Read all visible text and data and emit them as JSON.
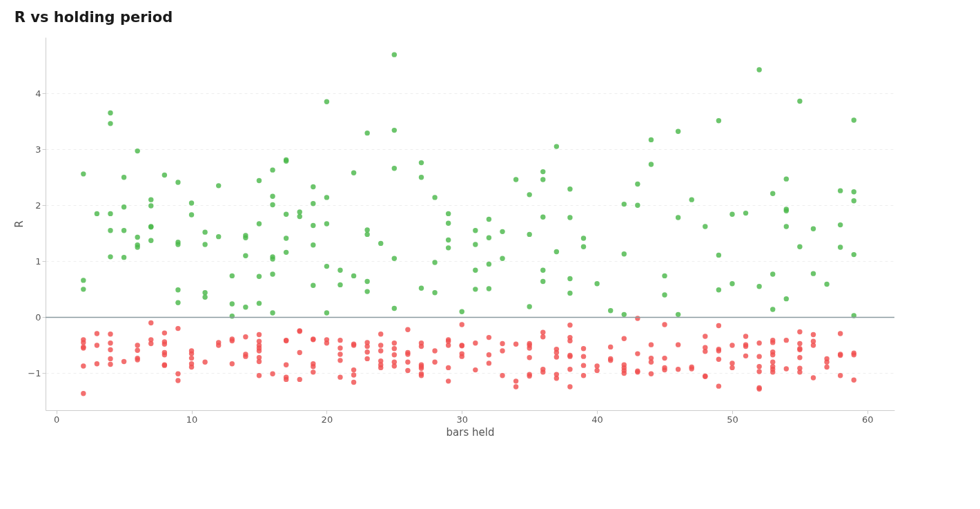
{
  "chart_data": {
    "type": "scatter",
    "title": "R vs holding period",
    "xlabel": "bars held",
    "ylabel": "R",
    "xlim": [
      -0.8,
      62
    ],
    "xticks": [
      0,
      10,
      20,
      30,
      40,
      50,
      60
    ],
    "ylim": [
      -1.66,
      5.0
    ],
    "yticks": [
      -1,
      0,
      1,
      2,
      3,
      4
    ],
    "grid": "y",
    "marker": "circle",
    "ref_lines": [
      {
        "axis": "y",
        "value": 0,
        "color": "#8a9aa0"
      }
    ],
    "series": [
      {
        "color": "#4cb84c",
        "x": [
          2,
          2,
          2,
          3,
          4,
          4,
          4,
          4,
          4,
          5,
          5,
          5,
          5,
          6,
          6,
          6,
          6,
          7,
          7,
          7,
          7,
          7,
          8,
          9,
          9,
          9,
          9,
          9,
          10,
          10,
          11,
          11,
          11,
          11,
          12,
          12,
          13,
          13,
          13,
          14,
          14,
          14,
          14,
          15,
          15,
          15,
          15,
          16,
          16,
          16,
          16,
          16,
          16,
          16,
          17,
          17,
          17,
          17,
          17,
          18,
          18,
          19,
          19,
          19,
          19,
          19,
          20,
          20,
          20,
          20,
          20,
          21,
          21,
          22,
          22,
          23,
          23,
          23,
          23,
          23,
          24,
          25,
          25,
          25,
          25,
          25,
          27,
          27,
          27,
          28,
          28,
          28,
          29,
          29,
          29,
          29,
          30,
          31,
          31,
          31,
          31,
          32,
          32,
          32,
          32,
          33,
          33,
          34,
          35,
          35,
          35,
          36,
          36,
          36,
          36,
          36,
          37,
          37,
          38,
          38,
          38,
          38,
          39,
          39,
          40,
          41,
          42,
          42,
          42,
          43,
          43,
          44,
          44,
          45,
          45,
          46,
          46,
          46,
          47,
          48,
          49,
          49,
          49,
          50,
          50,
          51,
          52,
          52,
          53,
          53,
          53,
          54,
          54,
          54,
          54,
          54,
          55,
          55,
          56,
          56,
          57,
          58,
          58,
          58,
          59,
          59,
          59,
          59,
          59
        ],
        "values": [
          2.56,
          0.66,
          0.5,
          1.85,
          3.65,
          3.46,
          1.85,
          1.55,
          1.08,
          2.5,
          1.97,
          1.55,
          1.07,
          2.97,
          1.43,
          1.29,
          1.25,
          2.1,
          1.99,
          1.62,
          1.61,
          1.37,
          2.54,
          2.41,
          1.34,
          1.3,
          0.49,
          0.26,
          2.04,
          1.83,
          1.52,
          1.3,
          0.44,
          0.36,
          2.35,
          1.44,
          0.74,
          0.24,
          0.02,
          1.46,
          1.42,
          1.1,
          0.18,
          2.44,
          1.67,
          0.73,
          0.25,
          2.63,
          2.16,
          2.01,
          1.08,
          1.04,
          0.77,
          0.08,
          2.81,
          2.79,
          1.84,
          1.41,
          1.16,
          1.88,
          1.8,
          2.33,
          2.03,
          1.64,
          1.29,
          0.57,
          3.85,
          2.14,
          1.67,
          0.91,
          0.08,
          0.84,
          0.58,
          2.58,
          0.74,
          3.29,
          1.56,
          1.48,
          0.64,
          0.46,
          1.32,
          4.69,
          3.34,
          2.66,
          1.05,
          0.16,
          2.76,
          2.5,
          0.52,
          2.14,
          0.98,
          0.44,
          1.85,
          1.68,
          1.38,
          1.24,
          0.1,
          1.55,
          1.3,
          0.84,
          0.5,
          1.75,
          1.42,
          0.95,
          0.51,
          1.53,
          1.05,
          2.46,
          2.19,
          1.48,
          0.19,
          2.6,
          2.46,
          1.79,
          0.84,
          0.64,
          3.05,
          1.17,
          2.29,
          1.78,
          0.69,
          0.43,
          1.41,
          1.26,
          0.6,
          0.12,
          2.02,
          1.13,
          0.05,
          2.38,
          2.0,
          3.17,
          2.73,
          0.74,
          0.4,
          3.32,
          1.78,
          0.05,
          2.1,
          1.62,
          3.51,
          1.11,
          0.49,
          1.84,
          0.6,
          1.86,
          4.42,
          0.55,
          2.21,
          0.77,
          0.14,
          2.47,
          1.93,
          1.9,
          1.62,
          0.33,
          3.86,
          1.26,
          1.58,
          0.78,
          0.59,
          2.26,
          1.65,
          1.25,
          3.52,
          2.24,
          2.08,
          1.12,
          0.03
        ]
      },
      {
        "color": "#f05050",
        "x": [
          2,
          2,
          2,
          2,
          2,
          2,
          3,
          3,
          3,
          4,
          4,
          4,
          4,
          4,
          5,
          6,
          6,
          6,
          6,
          7,
          7,
          7,
          8,
          8,
          8,
          8,
          8,
          8,
          8,
          9,
          9,
          9,
          10,
          10,
          10,
          10,
          10,
          11,
          12,
          12,
          13,
          13,
          13,
          14,
          14,
          14,
          15,
          15,
          15,
          15,
          15,
          15,
          15,
          15,
          16,
          17,
          17,
          17,
          17,
          17,
          18,
          18,
          18,
          18,
          19,
          19,
          19,
          19,
          19,
          20,
          20,
          21,
          21,
          21,
          21,
          21,
          22,
          22,
          22,
          22,
          22,
          23,
          23,
          23,
          23,
          24,
          24,
          24,
          24,
          24,
          24,
          25,
          25,
          25,
          25,
          25,
          26,
          26,
          26,
          26,
          26,
          27,
          27,
          27,
          27,
          27,
          27,
          27,
          28,
          28,
          29,
          29,
          29,
          29,
          29,
          30,
          30,
          30,
          30,
          30,
          31,
          31,
          32,
          32,
          32,
          33,
          33,
          33,
          34,
          34,
          34,
          35,
          35,
          35,
          35,
          35,
          35,
          36,
          36,
          36,
          36,
          37,
          37,
          37,
          37,
          37,
          38,
          38,
          38,
          38,
          38,
          38,
          38,
          39,
          39,
          39,
          39,
          40,
          40,
          41,
          41,
          41,
          42,
          42,
          42,
          42,
          42,
          43,
          43,
          43,
          43,
          44,
          44,
          44,
          44,
          45,
          45,
          45,
          45,
          46,
          46,
          47,
          47,
          48,
          48,
          48,
          48,
          48,
          49,
          49,
          49,
          49,
          49,
          50,
          50,
          50,
          51,
          51,
          51,
          51,
          52,
          52,
          52,
          52,
          52,
          52,
          53,
          53,
          53,
          53,
          53,
          53,
          53,
          53,
          54,
          54,
          55,
          55,
          55,
          55,
          55,
          55,
          55,
          56,
          56,
          56,
          56,
          57,
          57,
          57,
          58,
          58,
          58,
          58,
          59,
          59,
          59
        ],
        "values": [
          -0.4,
          -0.45,
          -0.53,
          -0.55,
          -0.87,
          -1.36,
          -0.29,
          -0.5,
          -0.83,
          -0.3,
          -0.46,
          -0.58,
          -0.74,
          -0.84,
          -0.79,
          -0.5,
          -0.59,
          -0.73,
          -0.76,
          -0.1,
          -0.4,
          -0.47,
          -0.28,
          -0.44,
          -0.48,
          -0.63,
          -0.67,
          -0.85,
          -0.86,
          -0.2,
          -1.01,
          -1.13,
          -0.6,
          -0.65,
          -0.73,
          -0.83,
          -0.89,
          -0.8,
          -0.45,
          -0.5,
          -0.39,
          -0.42,
          -0.83,
          -0.35,
          -0.66,
          -0.7,
          -0.31,
          -0.43,
          -0.5,
          -0.55,
          -0.6,
          -0.72,
          -0.79,
          -1.04,
          -1.01,
          -0.41,
          -0.42,
          -0.85,
          -1.07,
          -1.11,
          -0.24,
          -0.25,
          -0.63,
          -1.11,
          -0.39,
          -0.4,
          -0.83,
          -0.88,
          -0.98,
          -0.4,
          -0.46,
          -0.41,
          -0.55,
          -0.66,
          -0.77,
          -1.07,
          -0.48,
          -0.5,
          -0.94,
          -1.03,
          -1.16,
          -0.45,
          -0.52,
          -0.62,
          -0.74,
          -0.3,
          -0.5,
          -0.6,
          -0.78,
          -0.85,
          -0.9,
          -0.46,
          -0.56,
          -0.67,
          -0.8,
          -0.87,
          -0.22,
          -0.63,
          -0.66,
          -0.8,
          -0.95,
          -0.46,
          -0.52,
          -0.85,
          -0.88,
          -0.91,
          -1.01,
          -1.04,
          -0.6,
          -0.8,
          -0.4,
          -0.43,
          -0.5,
          -0.9,
          -1.14,
          -0.13,
          -0.5,
          -0.51,
          -0.65,
          -0.7,
          -0.46,
          -0.94,
          -0.36,
          -0.67,
          -0.82,
          -0.47,
          -0.6,
          -1.04,
          -0.48,
          -1.14,
          -1.24,
          -0.47,
          -0.5,
          -0.55,
          -0.72,
          -1.02,
          -1.05,
          -0.27,
          -0.35,
          -0.93,
          -0.98,
          -0.57,
          -0.63,
          -0.71,
          -1.02,
          -1.09,
          -0.14,
          -0.36,
          -0.42,
          -0.68,
          -0.7,
          -0.93,
          -1.24,
          -0.56,
          -0.7,
          -0.86,
          -1.04,
          -0.87,
          -0.95,
          -0.53,
          -0.74,
          -0.77,
          -0.38,
          -0.85,
          -0.9,
          -0.95,
          -1.0,
          -0.02,
          -0.65,
          -0.96,
          -0.98,
          -0.49,
          -0.73,
          -0.8,
          -1.01,
          -0.13,
          -0.73,
          -0.9,
          -0.94,
          -0.49,
          -0.93,
          -0.89,
          -0.92,
          -0.34,
          -0.54,
          -0.61,
          -1.05,
          -1.06,
          -0.15,
          -0.57,
          -0.6,
          -0.75,
          -1.23,
          -0.5,
          -0.82,
          -0.9,
          -0.34,
          -0.49,
          -0.52,
          -0.69,
          -0.46,
          -0.7,
          -0.88,
          -0.97,
          -1.26,
          -1.28,
          -0.41,
          -0.45,
          -0.62,
          -0.67,
          -0.8,
          -0.88,
          -0.93,
          -0.98,
          -0.41,
          -0.92,
          -0.26,
          -0.47,
          -0.56,
          -0.58,
          -0.72,
          -0.91,
          -0.98,
          -0.31,
          -0.43,
          -0.5,
          -1.08,
          -0.74,
          -0.8,
          -0.89,
          -0.29,
          -0.66,
          -0.68,
          -1.04,
          -0.64,
          -0.67,
          -1.12
        ]
      }
    ]
  }
}
